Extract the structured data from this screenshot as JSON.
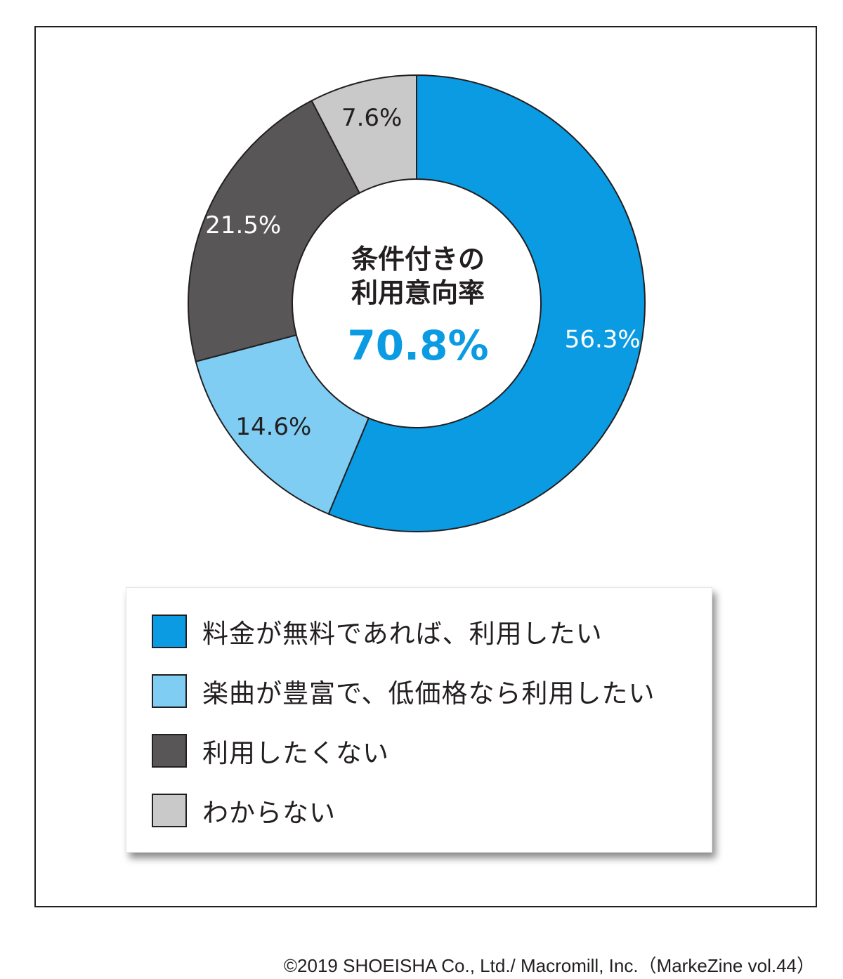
{
  "chart_data": {
    "type": "pie",
    "donut": true,
    "categories": [
      "料金が無料であれば、利用したい",
      "楽曲が豊富で、低価格なら利用したい",
      "利用したくない",
      "わからない"
    ],
    "values": [
      56.3,
      14.6,
      21.5,
      7.6
    ],
    "value_labels": [
      "56.3%",
      "14.6%",
      "21.5%",
      "7.6%"
    ],
    "colors": [
      "#0a9be3",
      "#7fcdf3",
      "#595657",
      "#c9c9ca"
    ],
    "label_colors": [
      "#ffffff",
      "#231f20",
      "#ffffff",
      "#231f20"
    ],
    "center_title_line1": "条件付きの",
    "center_title_line2": "利用意向率",
    "center_value": "70.8%",
    "legend_placement": "bottom"
  },
  "legend": {
    "items": [
      {
        "label": "料金が無料であれば、利用したい",
        "color": "#0a9be3"
      },
      {
        "label": "楽曲が豊富で、低価格なら利用したい",
        "color": "#7fcdf3"
      },
      {
        "label": "利用したくない",
        "color": "#595657"
      },
      {
        "label": "わからない",
        "color": "#c9c9ca"
      }
    ]
  },
  "copyright": "©2019 SHOEISHA Co., Ltd./ Macromill, Inc.（MarkeZine vol.44）"
}
